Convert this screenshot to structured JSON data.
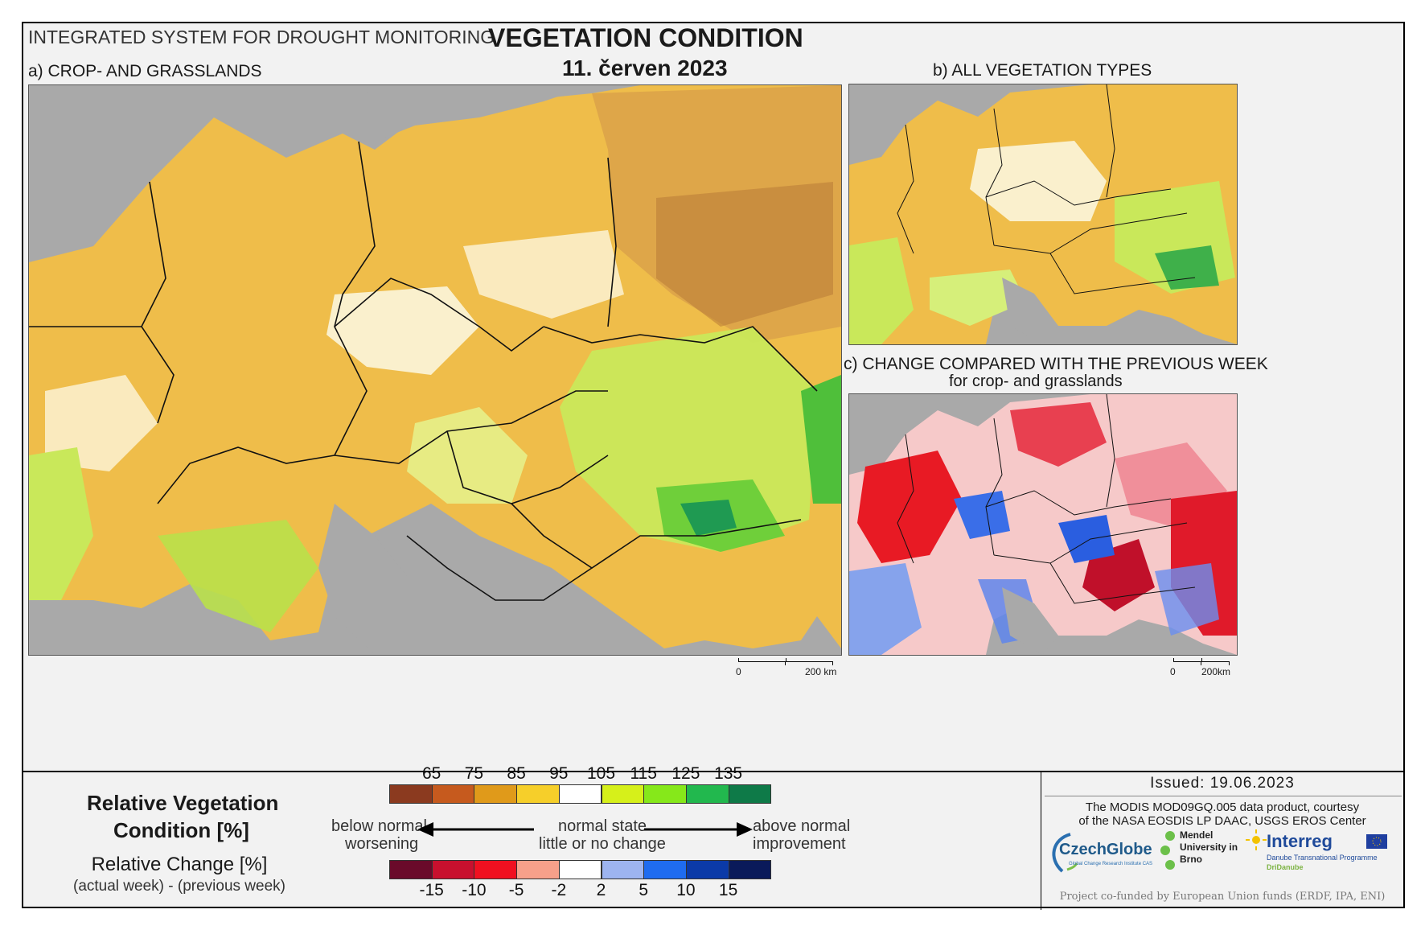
{
  "header": {
    "system_name": "INTEGRATED SYSTEM FOR DROUGHT MONITORING",
    "title": "VEGETATION CONDITION",
    "date": "11. červen 2023"
  },
  "panels": {
    "a_title": "a) CROP- AND GRASSLANDS",
    "b_title": "b) ALL VEGETATION TYPES",
    "c_title": "c) CHANGE COMPARED WITH THE PREVIOUS WEEK",
    "c_subtitle": "for crop- and grasslands",
    "scale_a": {
      "zero": "0",
      "end": "200 km"
    },
    "scale_c": {
      "zero": "0",
      "end": "200km"
    }
  },
  "legend": {
    "rvc_title_line1": "Relative Vegetation",
    "rvc_title_line2": "Condition [%]",
    "rc_title": "Relative Change [%]",
    "rc_subtitle": "(actual week) - (previous week)",
    "top_labels": [
      "65",
      "75",
      "85",
      "95",
      "105",
      "115",
      "125",
      "135"
    ],
    "top_colors": [
      "#8b3a1f",
      "#c65a1e",
      "#e09a1a",
      "#f6cf2a",
      "#ffffff",
      "#d6f01a",
      "#86e81a",
      "#22b84e",
      "#0e7a48"
    ],
    "bottom_labels": [
      "-15",
      "-10",
      "-5",
      "-2",
      "2",
      "5",
      "10",
      "15"
    ],
    "bottom_colors": [
      "#6a0a2a",
      "#c8102e",
      "#f01020",
      "#f7a08a",
      "#ffffff",
      "#9db4f0",
      "#1f6cf0",
      "#0b3aa8",
      "#0a1a5a"
    ],
    "below_normal": "below normal",
    "worsening": "worsening",
    "normal_state": "normal state",
    "little_change": "little or no change",
    "above_normal": "above normal",
    "improvement": "improvement"
  },
  "info": {
    "issued": "Issued: 19.06.2023",
    "credit_line1": "The MODIS MOD09GQ.005 data product, courtesy",
    "credit_line2": "of the NASA EOSDIS LP DAAC, USGS EROS Center",
    "logo_czechglobe": "CzechGlobe",
    "logo_czechglobe_sub": "Global Change Research Institute CAS",
    "logo_mendel": "Mendel University in Brno",
    "logo_interreg": "Interreg",
    "logo_interreg_sub1": "Danube Transnational Programme",
    "logo_interreg_sub2": "DriDanube",
    "funding": "Project co-funded by European Union funds (ERDF, IPA, ENI)"
  }
}
